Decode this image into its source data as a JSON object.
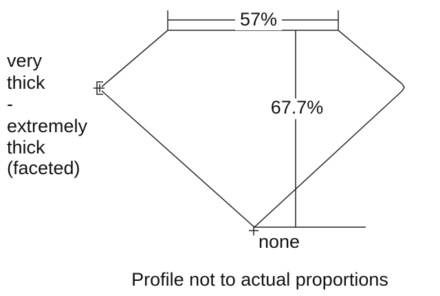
{
  "table": "57%",
  "depth": "67.7%",
  "girdle": {
    "lines": [
      "very",
      "thick",
      "-",
      "extremely",
      "thick",
      "(faceted)"
    ]
  },
  "culet": "none",
  "caption": "Profile not to actual proportions"
}
